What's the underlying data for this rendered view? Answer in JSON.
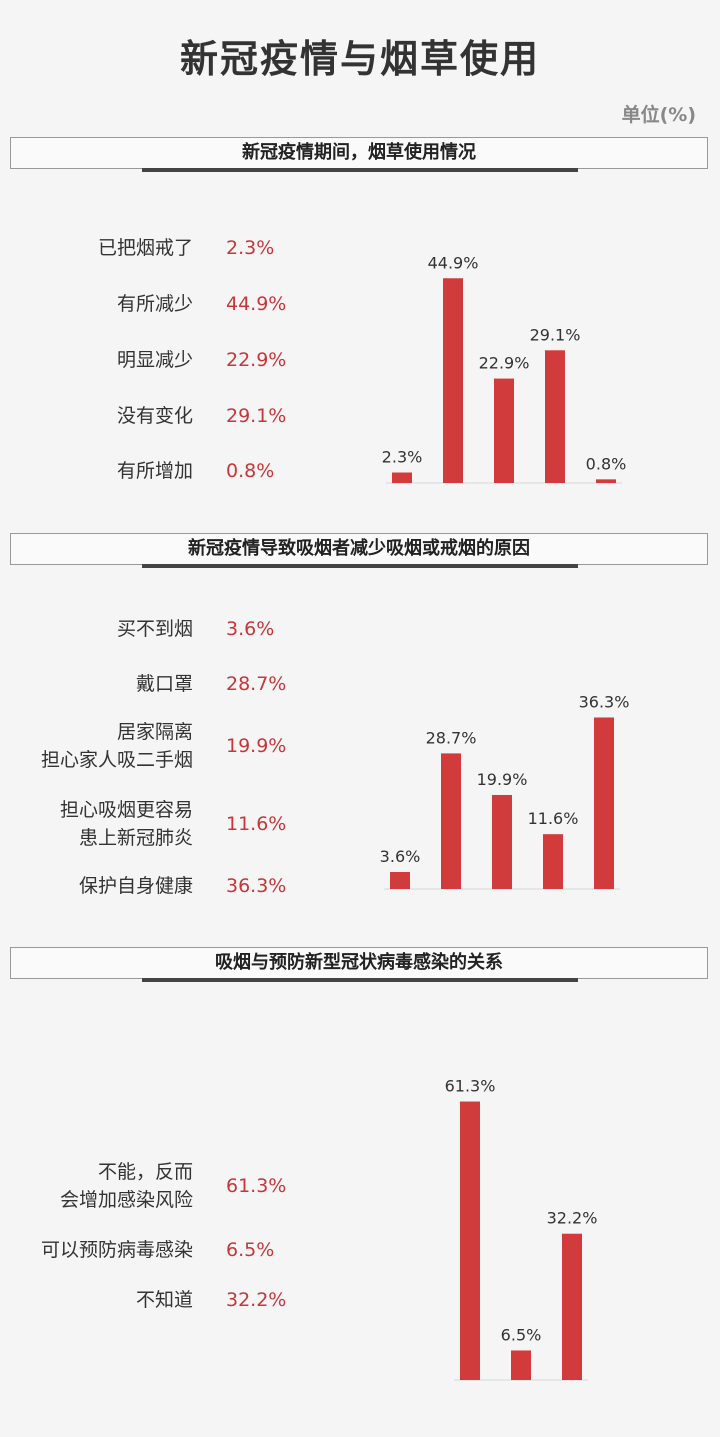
{
  "title": "新冠疫情与烟草使用",
  "unit": "单位(%)",
  "colors": {
    "bar": "#d13b3b",
    "value_text": "#c8363a"
  },
  "chart_data": [
    {
      "type": "bar",
      "title": "新冠疫情期间，烟草使用情况",
      "categories": [
        "已把烟戒了",
        "有所减少",
        "明显减少",
        "没有变化",
        "有所增加"
      ],
      "values": [
        2.3,
        44.9,
        22.9,
        29.1,
        0.8
      ],
      "value_labels": [
        "2.3%",
        "44.9%",
        "22.9%",
        "29.1%",
        "0.8%"
      ],
      "ylim": [
        0,
        50
      ]
    },
    {
      "type": "bar",
      "title": "新冠疫情导致吸烟者减少吸烟或戒烟的原因",
      "categories": [
        "买不到烟",
        "戴口罩",
        "居家隔离\n担心家人吸二手烟",
        "担心吸烟更容易\n患上新冠肺炎",
        "保护自身健康"
      ],
      "values": [
        3.6,
        28.7,
        19.9,
        11.6,
        36.3
      ],
      "value_labels": [
        "3.6%",
        "28.7%",
        "19.9%",
        "11.6%",
        "36.3%"
      ],
      "ylim": [
        0,
        40
      ]
    },
    {
      "type": "bar",
      "title": "吸烟与预防新型冠状病毒感染的关系",
      "categories": [
        "不能，反而\n会增加感染风险",
        "可以预防病毒感染",
        "不知道"
      ],
      "values": [
        61.3,
        6.5,
        32.2
      ],
      "value_labels": [
        "61.3%",
        "6.5%",
        "32.2%"
      ],
      "ylim": [
        0,
        70
      ]
    }
  ]
}
